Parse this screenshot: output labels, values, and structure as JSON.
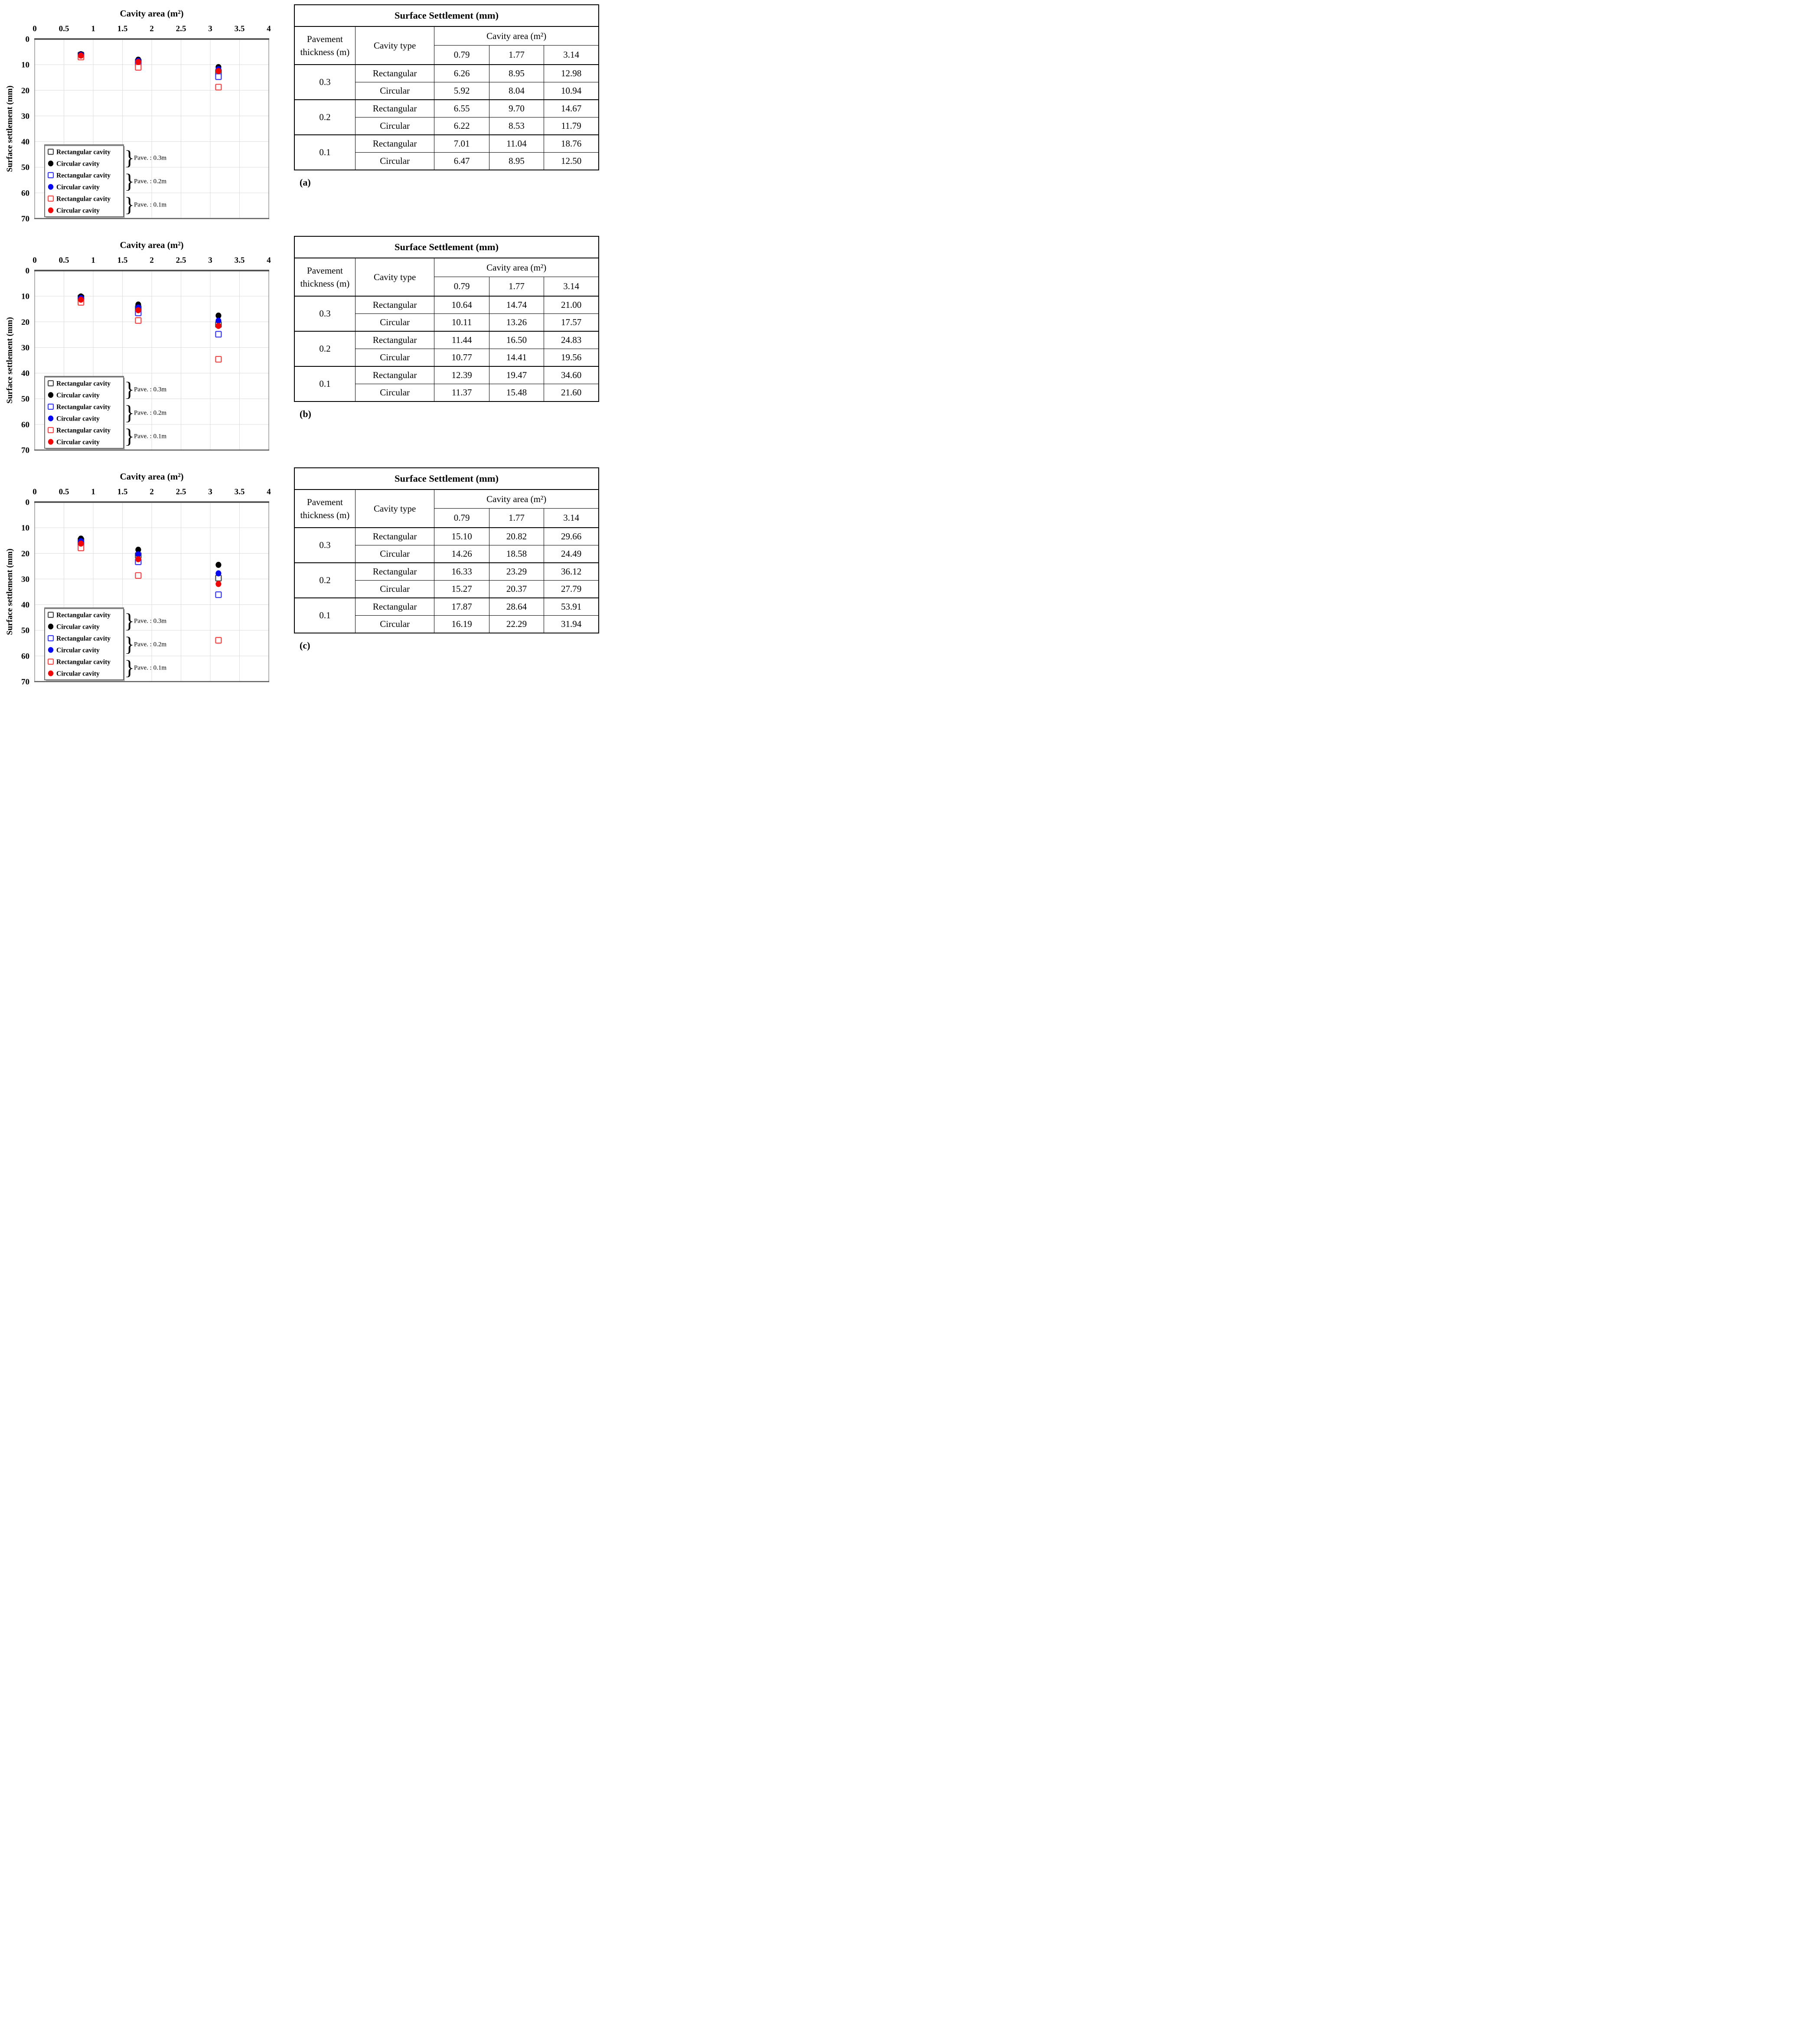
{
  "chart_common": {
    "title": "Cavity area (m²)",
    "ylabel": "Surface settlement (mm)",
    "xlim": [
      0,
      4
    ],
    "ylim": [
      0,
      70
    ],
    "y_inverted": true,
    "grid": true,
    "xticks": [
      "0",
      "0.5",
      "1",
      "1.5",
      "2",
      "2.5",
      "3",
      "3.5",
      "4"
    ],
    "yticks": [
      "0",
      "10",
      "20",
      "30",
      "40",
      "50",
      "60",
      "70"
    ],
    "legend_position": "lower-left",
    "legend": [
      {
        "marker": "square-open",
        "color": "#4a4a4a",
        "label": "Rectangular cavity"
      },
      {
        "marker": "circle-filled",
        "color": "#000000",
        "label": "Circular cavity"
      },
      {
        "marker": "square-open",
        "color": "#3b3bf0",
        "label": "Rectangular cavity"
      },
      {
        "marker": "circle-filled",
        "color": "#0808f0",
        "label": "Circular cavity"
      },
      {
        "marker": "square-open",
        "color": "#f04a4a",
        "label": "Rectangular cavity"
      },
      {
        "marker": "circle-filled",
        "color": "#f00808",
        "label": "Circular cavity"
      }
    ],
    "legend_groups": [
      "Pave. : 0.3m",
      "Pave. : 0.2m",
      "Pave. : 0.1m"
    ],
    "colors": {
      "black": "#000000",
      "blue": "#0808f0",
      "red": "#f00808",
      "gridline": "#dcdcdc",
      "axis_top": "#474747"
    }
  },
  "chart_data": [
    {
      "type": "scatter",
      "panel": "a",
      "title": "Cavity area (m²)",
      "xlabel": "Cavity area (m²)",
      "ylabel": "Surface settlement (mm)",
      "xlim": [
        0,
        4
      ],
      "ylim": [
        0,
        70
      ],
      "x": [
        0.79,
        1.77,
        3.14
      ],
      "series": [
        {
          "name": "Rectangular cavity (Pave. 0.3m)",
          "marker": "square-open",
          "color": "#4a4a4a",
          "values": [
            6.26,
            8.95,
            12.98
          ]
        },
        {
          "name": "Rectangular cavity (Pave. 0.2m)",
          "marker": "square-open",
          "color": "#3b3bf0",
          "values": [
            6.55,
            9.7,
            14.67
          ]
        },
        {
          "name": "Rectangular cavity (Pave. 0.1m)",
          "marker": "square-open",
          "color": "#f04a4a",
          "values": [
            7.01,
            11.04,
            18.76
          ]
        },
        {
          "name": "Circular cavity (Pave. 0.3m)",
          "marker": "circle-filled",
          "color": "#000000",
          "values": [
            5.92,
            8.04,
            10.94
          ]
        },
        {
          "name": "Circular cavity (Pave. 0.2m)",
          "marker": "circle-filled",
          "color": "#0808f0",
          "values": [
            6.22,
            8.53,
            11.79
          ]
        },
        {
          "name": "Circular cavity (Pave. 0.1m)",
          "marker": "circle-filled",
          "color": "#f00808",
          "values": [
            6.47,
            8.95,
            12.5
          ]
        }
      ]
    },
    {
      "type": "scatter",
      "panel": "b",
      "title": "Cavity area (m²)",
      "xlabel": "Cavity area (m²)",
      "ylabel": "Surface settlement (mm)",
      "xlim": [
        0,
        4
      ],
      "ylim": [
        0,
        70
      ],
      "x": [
        0.79,
        1.77,
        3.14
      ],
      "series": [
        {
          "name": "Rectangular cavity (Pave. 0.3m)",
          "marker": "square-open",
          "color": "#4a4a4a",
          "values": [
            10.64,
            14.74,
            21.0
          ]
        },
        {
          "name": "Rectangular cavity (Pave. 0.2m)",
          "marker": "square-open",
          "color": "#3b3bf0",
          "values": [
            11.44,
            16.5,
            24.83
          ]
        },
        {
          "name": "Rectangular cavity (Pave. 0.1m)",
          "marker": "square-open",
          "color": "#f04a4a",
          "values": [
            12.39,
            19.47,
            34.6
          ]
        },
        {
          "name": "Circular cavity (Pave. 0.3m)",
          "marker": "circle-filled",
          "color": "#000000",
          "values": [
            10.11,
            13.26,
            17.57
          ]
        },
        {
          "name": "Circular cavity (Pave. 0.2m)",
          "marker": "circle-filled",
          "color": "#0808f0",
          "values": [
            10.77,
            14.41,
            19.56
          ]
        },
        {
          "name": "Circular cavity (Pave. 0.1m)",
          "marker": "circle-filled",
          "color": "#f00808",
          "values": [
            11.37,
            15.48,
            21.6
          ]
        }
      ]
    },
    {
      "type": "scatter",
      "panel": "c",
      "title": "Cavity area (m²)",
      "xlabel": "Cavity area (m²)",
      "ylabel": "Surface settlement (mm)",
      "xlim": [
        0,
        4
      ],
      "ylim": [
        0,
        70
      ],
      "x": [
        0.79,
        1.77,
        3.14
      ],
      "series": [
        {
          "name": "Rectangular cavity (Pave. 0.3m)",
          "marker": "square-open",
          "color": "#4a4a4a",
          "values": [
            15.1,
            20.82,
            29.66
          ]
        },
        {
          "name": "Rectangular cavity (Pave. 0.2m)",
          "marker": "square-open",
          "color": "#3b3bf0",
          "values": [
            16.33,
            23.29,
            36.12
          ]
        },
        {
          "name": "Rectangular cavity (Pave. 0.1m)",
          "marker": "square-open",
          "color": "#f04a4a",
          "values": [
            17.87,
            28.64,
            53.91
          ]
        },
        {
          "name": "Circular cavity (Pave. 0.3m)",
          "marker": "circle-filled",
          "color": "#000000",
          "values": [
            14.26,
            18.58,
            24.49
          ]
        },
        {
          "name": "Circular cavity (Pave. 0.2m)",
          "marker": "circle-filled",
          "color": "#0808f0",
          "values": [
            15.27,
            20.37,
            27.79
          ]
        },
        {
          "name": "Circular cavity (Pave. 0.1m)",
          "marker": "circle-filled",
          "color": "#f00808",
          "values": [
            16.19,
            22.29,
            31.94
          ]
        }
      ]
    }
  ],
  "panels": [
    {
      "caption": "(a)",
      "table": {
        "title": "Surface Settlement (mm)",
        "col1_header": "Pavement thickness (m)",
        "col2_header": "Cavity type",
        "span_header": "Cavity area (m²)",
        "area_cols": [
          "0.79",
          "1.77",
          "3.14"
        ],
        "groups": [
          {
            "thickness": "0.3",
            "rows": [
              {
                "type": "Rectangular",
                "values": [
                  "6.26",
                  "8.95",
                  "12.98"
                ]
              },
              {
                "type": "Circular",
                "values": [
                  "5.92",
                  "8.04",
                  "10.94"
                ]
              }
            ]
          },
          {
            "thickness": "0.2",
            "rows": [
              {
                "type": "Rectangular",
                "values": [
                  "6.55",
                  "9.70",
                  "14.67"
                ]
              },
              {
                "type": "Circular",
                "values": [
                  "6.22",
                  "8.53",
                  "11.79"
                ]
              }
            ]
          },
          {
            "thickness": "0.1",
            "rows": [
              {
                "type": "Rectangular",
                "values": [
                  "7.01",
                  "11.04",
                  "18.76"
                ]
              },
              {
                "type": "Circular",
                "values": [
                  "6.47",
                  "8.95",
                  "12.50"
                ]
              }
            ]
          }
        ]
      }
    },
    {
      "caption": "(b)",
      "table": {
        "title": "Surface Settlement (mm)",
        "col1_header": "Pavement thickness (m)",
        "col2_header": "Cavity type",
        "span_header": "Cavity area (m²)",
        "area_cols": [
          "0.79",
          "1.77",
          "3.14"
        ],
        "groups": [
          {
            "thickness": "0.3",
            "rows": [
              {
                "type": "Rectangular",
                "values": [
                  "10.64",
                  "14.74",
                  "21.00"
                ]
              },
              {
                "type": "Circular",
                "values": [
                  "10.11",
                  "13.26",
                  "17.57"
                ]
              }
            ]
          },
          {
            "thickness": "0.2",
            "rows": [
              {
                "type": "Rectangular",
                "values": [
                  "11.44",
                  "16.50",
                  "24.83"
                ]
              },
              {
                "type": "Circular",
                "values": [
                  "10.77",
                  "14.41",
                  "19.56"
                ]
              }
            ]
          },
          {
            "thickness": "0.1",
            "rows": [
              {
                "type": "Rectangular",
                "values": [
                  "12.39",
                  "19.47",
                  "34.60"
                ]
              },
              {
                "type": "Circular",
                "values": [
                  "11.37",
                  "15.48",
                  "21.60"
                ]
              }
            ]
          }
        ]
      }
    },
    {
      "caption": "(c)",
      "table": {
        "title": "Surface Settlement (mm)",
        "col1_header": "Pavement thickness (m)",
        "col2_header": "Cavity type",
        "span_header": "Cavity area (m²)",
        "area_cols": [
          "0.79",
          "1.77",
          "3.14"
        ],
        "groups": [
          {
            "thickness": "0.3",
            "rows": [
              {
                "type": "Rectangular",
                "values": [
                  "15.10",
                  "20.82",
                  "29.66"
                ]
              },
              {
                "type": "Circular",
                "values": [
                  "14.26",
                  "18.58",
                  "24.49"
                ]
              }
            ]
          },
          {
            "thickness": "0.2",
            "rows": [
              {
                "type": "Rectangular",
                "values": [
                  "16.33",
                  "23.29",
                  "36.12"
                ]
              },
              {
                "type": "Circular",
                "values": [
                  "15.27",
                  "20.37",
                  "27.79"
                ]
              }
            ]
          },
          {
            "thickness": "0.1",
            "rows": [
              {
                "type": "Rectangular",
                "values": [
                  "17.87",
                  "28.64",
                  "53.91"
                ]
              },
              {
                "type": "Circular",
                "values": [
                  "16.19",
                  "22.29",
                  "31.94"
                ]
              }
            ]
          }
        ]
      }
    }
  ]
}
